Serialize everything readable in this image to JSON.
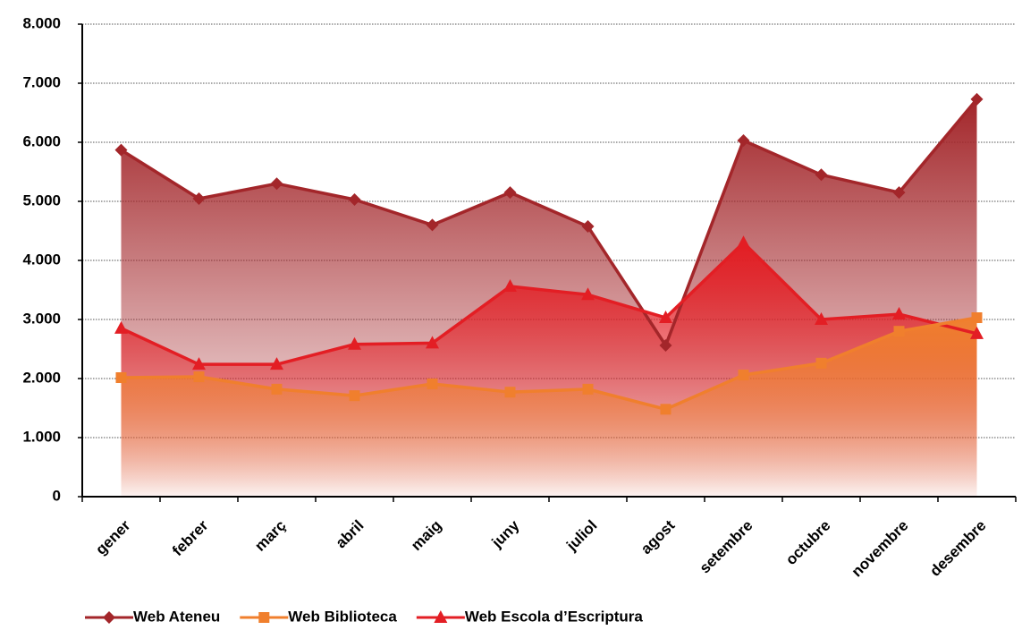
{
  "chart_data": {
    "type": "area-line",
    "categories": [
      "gener",
      "febrer",
      "març",
      "abril",
      "maig",
      "juny",
      "juliol",
      "agost",
      "setembre",
      "octubre",
      "novembre",
      "desembre"
    ],
    "series": [
      {
        "name": "Web Ateneu",
        "color": "#a3262a",
        "marker": "diamond",
        "values": [
          5870,
          5045,
          5300,
          5030,
          4600,
          5150,
          4575,
          2560,
          6030,
          5450,
          5150,
          6730
        ]
      },
      {
        "name": "Web Biblioteca",
        "color": "#f07f2d",
        "marker": "square",
        "values": [
          2015,
          2030,
          1820,
          1710,
          1910,
          1770,
          1820,
          1480,
          2060,
          2260,
          2800,
          3030
        ]
      },
      {
        "name": "Web Escola d’Escriptura",
        "color": "#e31e24",
        "marker": "triangle",
        "values": [
          2850,
          2240,
          2240,
          2580,
          2600,
          3560,
          3420,
          3030,
          4300,
          3000,
          3090,
          2760
        ]
      }
    ],
    "ylim": [
      0,
      8000
    ],
    "yticks": [
      0,
      {
        "value": 1000,
        "label": "1.000"
      },
      {
        "value": 2000,
        "label": "2.000"
      },
      {
        "value": 3000,
        "label": "3.000"
      },
      {
        "value": 4000,
        "label": "4.000"
      },
      {
        "value": 5000,
        "label": "5.000"
      },
      {
        "value": 6000,
        "label": "6.000"
      },
      {
        "value": 7000,
        "label": "7.000"
      },
      {
        "value": 8000,
        "label": "8.000"
      }
    ],
    "grid": true,
    "legend": "bottom"
  }
}
